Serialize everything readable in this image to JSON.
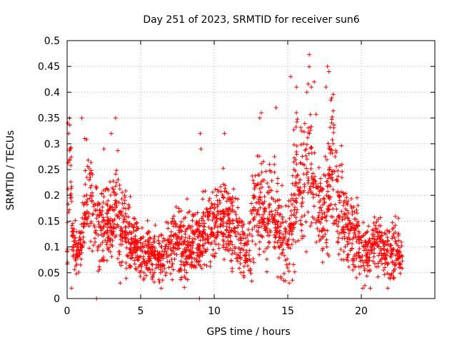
{
  "chart_data": {
    "type": "scatter",
    "title": "Day 251 of 2023, SRMTID for receiver sun6",
    "xlabel": "GPS time / hours",
    "ylabel": "SRMTID / TECUs",
    "xlim": [
      0,
      25
    ],
    "ylim": [
      0,
      0.5
    ],
    "x_ticks": [
      0,
      5,
      10,
      15,
      20
    ],
    "x_tick_labels": [
      "0",
      "5",
      "10",
      "15",
      "20"
    ],
    "y_ticks": [
      0,
      0.05,
      0.1,
      0.15,
      0.2,
      0.25,
      0.3,
      0.35,
      0.4,
      0.45,
      0.5
    ],
    "y_tick_labels": [
      "0",
      "0.05",
      "0.1",
      "0.15",
      "0.2",
      "0.25",
      "0.3",
      "0.35",
      "0.4",
      "0.45",
      "0.5"
    ],
    "grid": true,
    "marker": "+",
    "color": "#ff0000",
    "series": [
      {
        "name": "SRMTID",
        "envelope": [
          [
            0.0,
            0.09,
            0.03
          ],
          [
            0.1,
            0.28,
            0.06
          ],
          [
            0.2,
            0.3,
            0.06
          ],
          [
            0.4,
            0.1,
            0.03
          ],
          [
            0.7,
            0.08,
            0.02
          ],
          [
            1.0,
            0.12,
            0.03
          ],
          [
            1.3,
            0.19,
            0.04
          ],
          [
            1.6,
            0.2,
            0.04
          ],
          [
            2.0,
            0.15,
            0.04
          ],
          [
            2.5,
            0.13,
            0.04
          ],
          [
            3.0,
            0.14,
            0.04
          ],
          [
            3.4,
            0.18,
            0.05
          ],
          [
            3.8,
            0.13,
            0.04
          ],
          [
            4.5,
            0.11,
            0.03
          ],
          [
            5.0,
            0.09,
            0.025
          ],
          [
            5.5,
            0.09,
            0.025
          ],
          [
            6.0,
            0.08,
            0.025
          ],
          [
            6.5,
            0.08,
            0.025
          ],
          [
            7.0,
            0.1,
            0.03
          ],
          [
            7.5,
            0.11,
            0.03
          ],
          [
            8.0,
            0.1,
            0.03
          ],
          [
            8.5,
            0.11,
            0.03
          ],
          [
            9.0,
            0.12,
            0.03
          ],
          [
            9.5,
            0.14,
            0.035
          ],
          [
            10.0,
            0.15,
            0.04
          ],
          [
            10.5,
            0.16,
            0.04
          ],
          [
            11.0,
            0.14,
            0.035
          ],
          [
            11.5,
            0.13,
            0.035
          ],
          [
            12.0,
            0.1,
            0.03
          ],
          [
            12.3,
            0.08,
            0.025
          ],
          [
            12.7,
            0.17,
            0.05
          ],
          [
            13.0,
            0.2,
            0.05
          ],
          [
            13.5,
            0.16,
            0.04
          ],
          [
            14.0,
            0.18,
            0.05
          ],
          [
            14.5,
            0.12,
            0.04
          ],
          [
            15.0,
            0.1,
            0.03
          ],
          [
            15.5,
            0.22,
            0.07
          ],
          [
            16.0,
            0.2,
            0.06
          ],
          [
            16.5,
            0.28,
            0.07
          ],
          [
            17.0,
            0.18,
            0.05
          ],
          [
            17.5,
            0.16,
            0.05
          ],
          [
            18.0,
            0.26,
            0.07
          ],
          [
            18.5,
            0.18,
            0.05
          ],
          [
            19.0,
            0.14,
            0.04
          ],
          [
            19.5,
            0.12,
            0.04
          ],
          [
            20.0,
            0.1,
            0.03
          ],
          [
            20.5,
            0.09,
            0.03
          ],
          [
            21.0,
            0.11,
            0.03
          ],
          [
            21.5,
            0.1,
            0.03
          ],
          [
            22.0,
            0.09,
            0.03
          ],
          [
            22.5,
            0.09,
            0.03
          ],
          [
            22.8,
            0.08,
            0.02
          ]
        ],
        "points_per_hour": 100,
        "extra_points": [
          [
            0.05,
            0.34
          ],
          [
            0.1,
            0.32
          ],
          [
            1.0,
            0.35
          ],
          [
            1.2,
            0.31
          ],
          [
            2.0,
            0.0
          ],
          [
            2.5,
            0.29
          ],
          [
            3.0,
            0.32
          ],
          [
            3.3,
            0.35
          ],
          [
            9.0,
            0.0
          ],
          [
            9.05,
            0.32
          ],
          [
            9.1,
            0.29
          ],
          [
            10.7,
            0.32
          ],
          [
            13.1,
            0.35
          ],
          [
            13.2,
            0.36
          ],
          [
            14.2,
            0.37
          ],
          [
            15.2,
            0.43
          ],
          [
            16.3,
            0.4
          ],
          [
            16.6,
            0.41
          ],
          [
            16.8,
            0.42
          ],
          [
            17.6,
            0.41
          ],
          [
            17.7,
            0.45
          ],
          [
            17.8,
            0.44
          ],
          [
            15.1,
            0.03
          ],
          [
            6.4,
            0.02
          ],
          [
            0.3,
            0.02
          ],
          [
            20.1,
            0.02
          ],
          [
            21.8,
            0.02
          ]
        ]
      }
    ]
  }
}
